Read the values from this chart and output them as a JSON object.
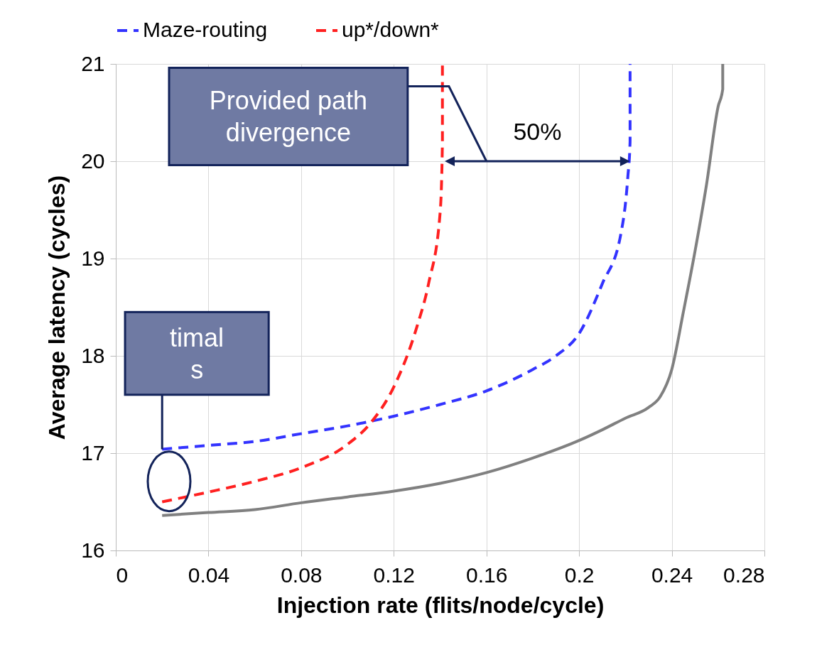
{
  "chart_data": {
    "type": "line",
    "xlabel": "Injection rate (flits/node/cycle)",
    "ylabel": "Average latency (cycles)",
    "xlim": [
      0,
      0.28
    ],
    "xticks": [
      0,
      0.04,
      0.08,
      0.12,
      0.16,
      0.2,
      0.24,
      0.28
    ],
    "ylim": [
      16,
      21
    ],
    "yticks": [
      16,
      17,
      18,
      19,
      20,
      21
    ],
    "grid": true,
    "legend": "top",
    "marker": "none",
    "series": [
      {
        "name": "Maze-routing",
        "color": "#3333ff",
        "line_style": "dashed",
        "x": [
          0.02,
          0.04,
          0.06,
          0.08,
          0.1,
          0.12,
          0.14,
          0.16,
          0.18,
          0.19,
          0.2,
          0.21,
          0.218,
          0.221,
          0.222,
          0.222
        ],
        "values": [
          17.04,
          17.08,
          17.12,
          17.2,
          17.28,
          17.38,
          17.5,
          17.64,
          17.86,
          18.0,
          18.23,
          18.74,
          19.25,
          19.83,
          20.2,
          21
        ]
      },
      {
        "name": "up*/down*",
        "color": "#ff2020",
        "line_style": "dashed",
        "x": [
          0.02,
          0.04,
          0.06,
          0.08,
          0.1,
          0.11,
          0.12,
          0.13,
          0.135,
          0.14,
          0.141,
          0.141
        ],
        "values": [
          16.5,
          16.6,
          16.71,
          16.85,
          17.09,
          17.31,
          17.68,
          18.3,
          18.74,
          19.47,
          20.2,
          21
        ]
      },
      {
        "color": "#808080",
        "line_style": "solid",
        "x": [
          0.02,
          0.04,
          0.06,
          0.08,
          0.1,
          0.12,
          0.14,
          0.16,
          0.18,
          0.2,
          0.21,
          0.22,
          0.23,
          0.235,
          0.24,
          0.245,
          0.25,
          0.255,
          0.26,
          0.262,
          0.262
        ],
        "values": [
          16.36,
          16.39,
          16.42,
          16.49,
          16.55,
          16.61,
          16.69,
          16.8,
          16.95,
          17.13,
          17.24,
          17.36,
          17.47,
          17.58,
          17.86,
          18.45,
          19.07,
          19.76,
          20.56,
          20.74,
          21
        ]
      }
    ],
    "annotations": [
      "Provided path\ndivergence",
      "50%",
      {
        "text": "timal\ns",
        "x": 0.02,
        "y": 17.04
      }
    ]
  }
}
